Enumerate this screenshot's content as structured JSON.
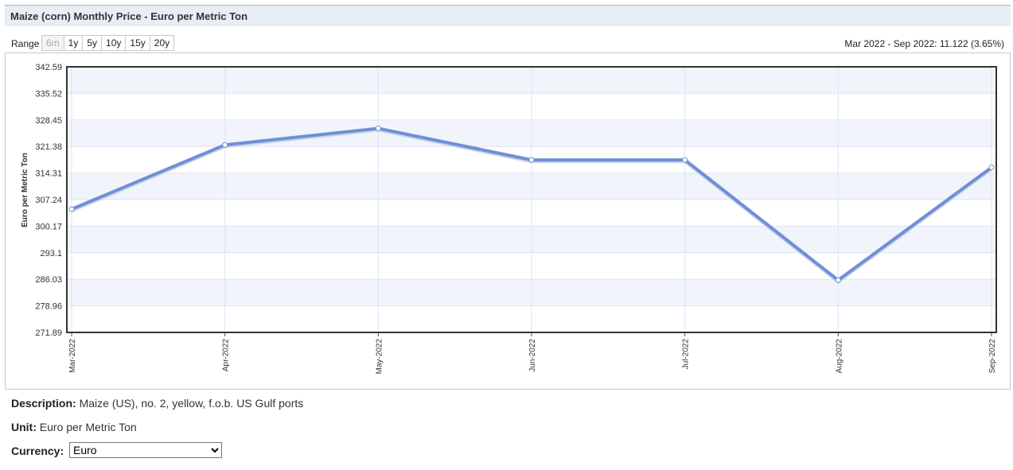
{
  "page": {
    "title": "Maize (corn) Monthly Price - Euro per Metric Ton",
    "range_label": "Range",
    "range_buttons": [
      {
        "label": "6m",
        "disabled": true
      },
      {
        "label": "1y",
        "disabled": false
      },
      {
        "label": "5y",
        "disabled": false
      },
      {
        "label": "10y",
        "disabled": false
      },
      {
        "label": "15y",
        "disabled": false
      },
      {
        "label": "20y",
        "disabled": false
      }
    ],
    "range_summary": "Mar 2022 - Sep 2022: 11.122 (3.65%)"
  },
  "info": {
    "description_label": "Description:",
    "description_value": "Maize (US), no. 2, yellow, f.o.b. US Gulf ports",
    "unit_label": "Unit:",
    "unit_value": "Euro per Metric Ton",
    "currency_label": "Currency:",
    "currency_selected": "Euro"
  },
  "colors": {
    "line": "#6f8fd6",
    "band": "#f1f4fb",
    "grid": "#dde3f2",
    "frame": "#333333"
  },
  "chart_data": {
    "type": "line",
    "title": "",
    "xlabel": "",
    "ylabel": "Euro per Metric Ton",
    "categories": [
      "Mar-2022",
      "Apr-2022",
      "May-2022",
      "Jun-2022",
      "Jul-2022",
      "Aug-2022",
      "Sep-2022"
    ],
    "series": [
      {
        "values": [
          304.7,
          321.8,
          326.2,
          317.8,
          317.8,
          285.8,
          315.8
        ]
      }
    ],
    "y_ticks": [
      "342.59",
      "335.52",
      "328.45",
      "321.38",
      "314.31",
      "307.24",
      "300.17",
      "293.1",
      "286.03",
      "278.96",
      "271.89"
    ],
    "ylim": [
      271.89,
      342.59
    ],
    "grid": true,
    "legend": "none"
  }
}
